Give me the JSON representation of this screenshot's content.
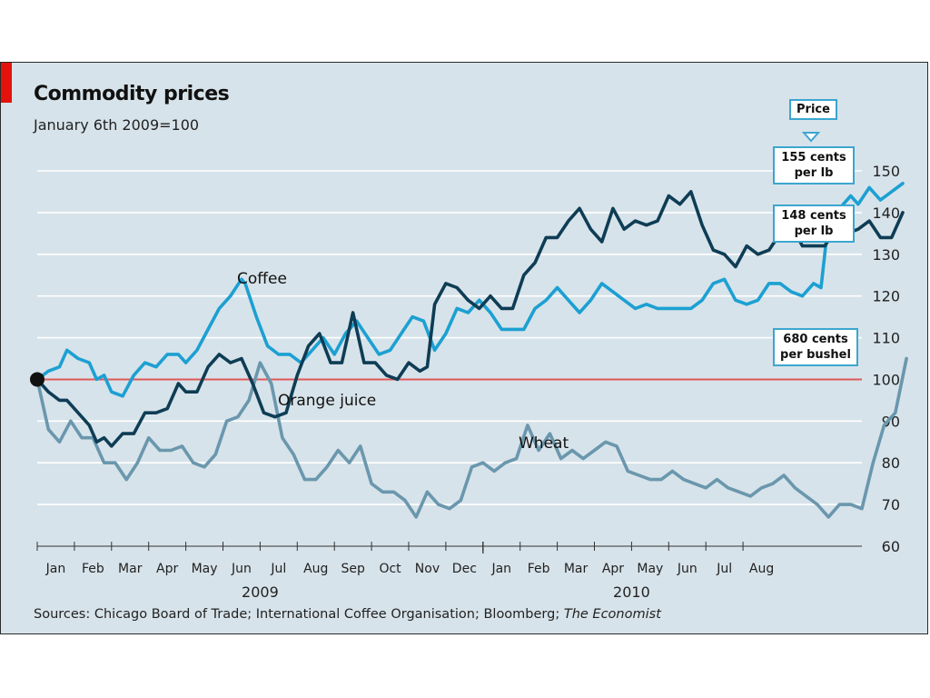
{
  "header": {
    "title": "Commodity prices",
    "subtitle": "January 6th 2009=100"
  },
  "source": {
    "prefix": "Sources: Chicago Board of Trade; International Coffee Organisation; Bloomberg;",
    "publication": "The Economist"
  },
  "price_label": "Price",
  "end_labels": [
    {
      "line1": "155 cents",
      "line2": "per lb",
      "series": "Coffee"
    },
    {
      "line1": "148 cents",
      "line2": "per lb",
      "series": "Orange juice"
    },
    {
      "line1": "680 cents",
      "line2": "per bushel",
      "series": "Wheat"
    }
  ],
  "chart_data": {
    "type": "line",
    "title": "Commodity prices",
    "subtitle": "January 6th 2009=100",
    "ylim": [
      60,
      150
    ],
    "yticks": [
      60,
      70,
      80,
      90,
      100,
      110,
      120,
      130,
      140,
      150
    ],
    "reference_line": 100,
    "x_month_labels": [
      "Jan",
      "Feb",
      "Mar",
      "Apr",
      "May",
      "Jun",
      "Jul",
      "Aug",
      "Sep",
      "Oct",
      "Nov",
      "Dec",
      "Jan",
      "Feb",
      "Mar",
      "Apr",
      "May",
      "Jun",
      "Jul",
      "Aug"
    ],
    "x_years": [
      {
        "label": "2009"
      },
      {
        "label": "2010"
      }
    ],
    "grid": "horizontal",
    "colors": {
      "Coffee": "#1ca0d2",
      "Orange juice": "#0e3d55",
      "Wheat": "#6a97ad",
      "reference": "#e0585a"
    },
    "series": [
      {
        "name": "Coffee",
        "label_text": "Coffee",
        "points": [
          [
            0.0,
            100
          ],
          [
            0.3,
            102
          ],
          [
            0.6,
            103
          ],
          [
            0.8,
            107
          ],
          [
            1.1,
            105
          ],
          [
            1.4,
            104
          ],
          [
            1.6,
            100
          ],
          [
            1.8,
            101
          ],
          [
            2.0,
            97
          ],
          [
            2.3,
            96
          ],
          [
            2.6,
            101
          ],
          [
            2.9,
            104
          ],
          [
            3.2,
            103
          ],
          [
            3.5,
            106
          ],
          [
            3.8,
            106
          ],
          [
            4.0,
            104
          ],
          [
            4.3,
            107
          ],
          [
            4.6,
            112
          ],
          [
            4.9,
            117
          ],
          [
            5.2,
            120
          ],
          [
            5.5,
            124
          ],
          [
            5.6,
            123
          ],
          [
            5.9,
            115
          ],
          [
            6.2,
            108
          ],
          [
            6.5,
            106
          ],
          [
            6.8,
            106
          ],
          [
            7.1,
            104
          ],
          [
            7.4,
            107
          ],
          [
            7.7,
            110
          ],
          [
            8.0,
            106
          ],
          [
            8.3,
            111
          ],
          [
            8.6,
            114
          ],
          [
            8.9,
            110
          ],
          [
            9.2,
            106
          ],
          [
            9.5,
            107
          ],
          [
            9.8,
            111
          ],
          [
            10.1,
            115
          ],
          [
            10.4,
            114
          ],
          [
            10.7,
            107
          ],
          [
            11.0,
            111
          ],
          [
            11.3,
            117
          ],
          [
            11.6,
            116
          ],
          [
            11.9,
            119
          ],
          [
            12.2,
            116
          ],
          [
            12.5,
            112
          ],
          [
            12.8,
            112
          ],
          [
            13.1,
            112
          ],
          [
            13.4,
            117
          ],
          [
            13.7,
            119
          ],
          [
            14.0,
            122
          ],
          [
            14.3,
            119
          ],
          [
            14.6,
            116
          ],
          [
            14.9,
            119
          ],
          [
            15.2,
            123
          ],
          [
            15.5,
            121
          ],
          [
            15.8,
            119
          ],
          [
            16.1,
            117
          ],
          [
            16.4,
            118
          ],
          [
            16.7,
            117
          ],
          [
            17.0,
            117
          ],
          [
            17.3,
            117
          ],
          [
            17.6,
            117
          ],
          [
            17.9,
            119
          ],
          [
            18.2,
            123
          ],
          [
            18.5,
            124
          ],
          [
            18.8,
            119
          ],
          [
            19.1,
            118
          ],
          [
            19.4,
            119
          ],
          [
            19.7,
            123
          ],
          [
            20.0,
            123
          ],
          [
            20.3,
            121
          ],
          [
            20.6,
            120
          ],
          [
            20.9,
            123
          ],
          [
            21.1,
            122
          ],
          [
            21.3,
            138
          ],
          [
            21.6,
            141
          ],
          [
            21.9,
            144
          ],
          [
            22.1,
            142
          ],
          [
            22.4,
            146
          ],
          [
            22.7,
            143
          ],
          [
            23.0,
            145
          ],
          [
            23.3,
            147
          ]
        ]
      },
      {
        "name": "Orange juice",
        "label_text": "Orange juice",
        "points": [
          [
            0.0,
            100
          ],
          [
            0.3,
            97
          ],
          [
            0.6,
            95
          ],
          [
            0.8,
            95
          ],
          [
            1.1,
            92
          ],
          [
            1.4,
            89
          ],
          [
            1.6,
            85
          ],
          [
            1.8,
            86
          ],
          [
            2.0,
            84
          ],
          [
            2.3,
            87
          ],
          [
            2.6,
            87
          ],
          [
            2.9,
            92
          ],
          [
            3.2,
            92
          ],
          [
            3.5,
            93
          ],
          [
            3.8,
            99
          ],
          [
            4.0,
            97
          ],
          [
            4.3,
            97
          ],
          [
            4.6,
            103
          ],
          [
            4.9,
            106
          ],
          [
            5.2,
            104
          ],
          [
            5.5,
            105
          ],
          [
            5.8,
            99
          ],
          [
            6.1,
            92
          ],
          [
            6.4,
            91
          ],
          [
            6.7,
            92
          ],
          [
            7.0,
            101
          ],
          [
            7.3,
            108
          ],
          [
            7.6,
            111
          ],
          [
            7.9,
            104
          ],
          [
            8.2,
            104
          ],
          [
            8.5,
            116
          ],
          [
            8.8,
            104
          ],
          [
            9.1,
            104
          ],
          [
            9.4,
            101
          ],
          [
            9.7,
            100
          ],
          [
            10.0,
            104
          ],
          [
            10.3,
            102
          ],
          [
            10.5,
            103
          ],
          [
            10.7,
            118
          ],
          [
            11.0,
            123
          ],
          [
            11.3,
            122
          ],
          [
            11.6,
            119
          ],
          [
            11.9,
            117
          ],
          [
            12.2,
            120
          ],
          [
            12.5,
            117
          ],
          [
            12.8,
            117
          ],
          [
            13.1,
            125
          ],
          [
            13.4,
            128
          ],
          [
            13.7,
            134
          ],
          [
            14.0,
            134
          ],
          [
            14.3,
            138
          ],
          [
            14.6,
            141
          ],
          [
            14.9,
            136
          ],
          [
            15.2,
            133
          ],
          [
            15.5,
            141
          ],
          [
            15.8,
            136
          ],
          [
            16.1,
            138
          ],
          [
            16.4,
            137
          ],
          [
            16.7,
            138
          ],
          [
            17.0,
            144
          ],
          [
            17.3,
            142
          ],
          [
            17.6,
            145
          ],
          [
            17.9,
            137
          ],
          [
            18.2,
            131
          ],
          [
            18.5,
            130
          ],
          [
            18.8,
            127
          ],
          [
            19.1,
            132
          ],
          [
            19.4,
            130
          ],
          [
            19.7,
            131
          ],
          [
            20.0,
            135
          ],
          [
            20.3,
            137
          ],
          [
            20.6,
            132
          ],
          [
            20.9,
            132
          ],
          [
            21.2,
            132
          ],
          [
            21.5,
            136
          ],
          [
            21.8,
            135
          ],
          [
            22.1,
            136
          ],
          [
            22.4,
            138
          ],
          [
            22.7,
            134
          ],
          [
            23.0,
            134
          ],
          [
            23.3,
            140
          ]
        ]
      },
      {
        "name": "Wheat",
        "label_text": "Wheat",
        "points": [
          [
            0.0,
            100
          ],
          [
            0.3,
            88
          ],
          [
            0.6,
            85
          ],
          [
            0.9,
            90
          ],
          [
            1.2,
            86
          ],
          [
            1.5,
            86
          ],
          [
            1.8,
            80
          ],
          [
            2.1,
            80
          ],
          [
            2.4,
            76
          ],
          [
            2.7,
            80
          ],
          [
            3.0,
            86
          ],
          [
            3.3,
            83
          ],
          [
            3.6,
            83
          ],
          [
            3.9,
            84
          ],
          [
            4.2,
            80
          ],
          [
            4.5,
            79
          ],
          [
            4.8,
            82
          ],
          [
            5.1,
            90
          ],
          [
            5.4,
            91
          ],
          [
            5.7,
            95
          ],
          [
            6.0,
            104
          ],
          [
            6.3,
            99
          ],
          [
            6.6,
            86
          ],
          [
            6.9,
            82
          ],
          [
            7.2,
            76
          ],
          [
            7.5,
            76
          ],
          [
            7.8,
            79
          ],
          [
            8.1,
            83
          ],
          [
            8.4,
            80
          ],
          [
            8.7,
            84
          ],
          [
            9.0,
            75
          ],
          [
            9.3,
            73
          ],
          [
            9.6,
            73
          ],
          [
            9.9,
            71
          ],
          [
            10.2,
            67
          ],
          [
            10.5,
            73
          ],
          [
            10.8,
            70
          ],
          [
            11.1,
            69
          ],
          [
            11.4,
            71
          ],
          [
            11.7,
            79
          ],
          [
            12.0,
            80
          ],
          [
            12.3,
            78
          ],
          [
            12.6,
            80
          ],
          [
            12.9,
            81
          ],
          [
            13.2,
            89
          ],
          [
            13.5,
            83
          ],
          [
            13.8,
            87
          ],
          [
            14.1,
            81
          ],
          [
            14.4,
            83
          ],
          [
            14.7,
            81
          ],
          [
            15.0,
            83
          ],
          [
            15.3,
            85
          ],
          [
            15.6,
            84
          ],
          [
            15.9,
            78
          ],
          [
            16.2,
            77
          ],
          [
            16.5,
            76
          ],
          [
            16.8,
            76
          ],
          [
            17.1,
            78
          ],
          [
            17.4,
            76
          ],
          [
            17.7,
            75
          ],
          [
            18.0,
            74
          ],
          [
            18.3,
            76
          ],
          [
            18.6,
            74
          ],
          [
            18.9,
            73
          ],
          [
            19.2,
            72
          ],
          [
            19.5,
            74
          ],
          [
            19.8,
            75
          ],
          [
            20.1,
            77
          ],
          [
            20.4,
            74
          ],
          [
            20.7,
            72
          ],
          [
            21.0,
            70
          ],
          [
            21.3,
            67
          ],
          [
            21.6,
            70
          ],
          [
            21.9,
            70
          ],
          [
            22.2,
            69
          ],
          [
            22.5,
            80
          ],
          [
            22.8,
            89
          ],
          [
            23.1,
            92
          ],
          [
            23.4,
            105
          ]
        ]
      }
    ]
  }
}
